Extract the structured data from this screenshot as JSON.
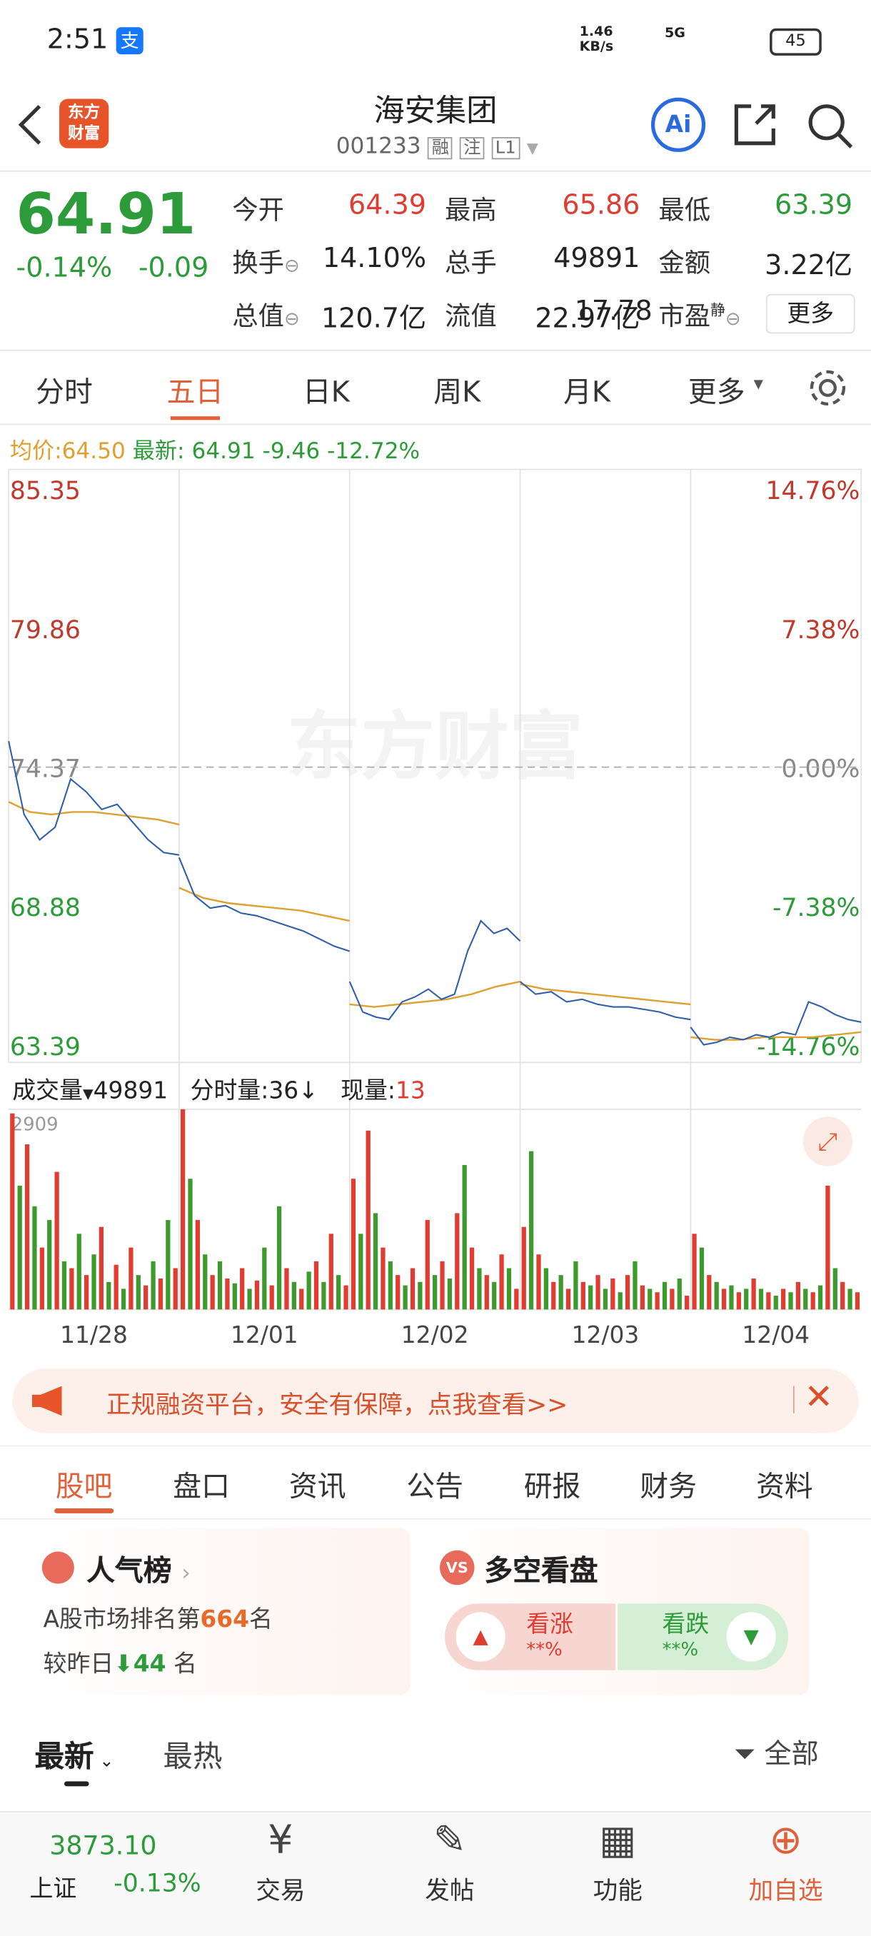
{
  "status": {
    "time": "2:51",
    "pay": "支",
    "speed": "1.46",
    "speed_unit": "KB/s",
    "net": "5G",
    "battery": "45"
  },
  "header": {
    "logo": [
      "东方",
      "财富"
    ],
    "title": "海安集团",
    "code": "001233",
    "tags": [
      "融",
      "注",
      "L1"
    ],
    "ai": "Ai"
  },
  "quote": {
    "price": "64.91",
    "change_pct": "-0.14%",
    "change": "-0.09",
    "stats": [
      {
        "label": "今开",
        "value": "64.39",
        "tone": "up"
      },
      {
        "label": "最高",
        "value": "65.86",
        "tone": "up"
      },
      {
        "label": "最低",
        "value": "63.39",
        "tone": "down"
      },
      {
        "label": "换手",
        "value": "14.10%",
        "tone": "flat"
      },
      {
        "label": "总手",
        "value": "49891",
        "tone": "flat"
      },
      {
        "label": "金额",
        "value": "3.22亿",
        "tone": "flat"
      },
      {
        "label": "总值",
        "value": "120.7亿",
        "tone": "flat"
      },
      {
        "label": "流值",
        "value": "22.97亿",
        "tone": "flat"
      },
      {
        "label": "市盈",
        "sup": "静",
        "value": "17.78",
        "tone": "flat"
      }
    ],
    "more": "更多"
  },
  "tabs": {
    "items": [
      "分时",
      "五日",
      "日K",
      "周K",
      "月K",
      "更多"
    ],
    "active": 1
  },
  "info": {
    "avg_label": "均价:",
    "avg": "64.50",
    "latest_label": "最新:",
    "latest": "64.91",
    "chg": "-9.46",
    "pct": "-12.72%"
  },
  "chart": {
    "type": "line",
    "watermark": "东方财富",
    "ylim": [
      63.39,
      85.35
    ],
    "yticks": [
      {
        "value": 85.35,
        "label": "85.35",
        "right": "14.76%",
        "tone": "up"
      },
      {
        "value": 79.86,
        "label": "79.86",
        "right": "7.38%",
        "tone": "up"
      },
      {
        "value": 74.37,
        "label": "74.37",
        "right": "0.00%",
        "tone": "flat"
      },
      {
        "value": 68.88,
        "label": "68.88",
        "right": "-7.38%",
        "tone": "down"
      },
      {
        "value": 63.39,
        "label": "63.39",
        "right": "-14.76%",
        "tone": "down"
      }
    ],
    "price_color": "#2f5fa8",
    "avg_color": "#e0a030",
    "days": [
      {
        "date": "11/28",
        "price": [
          75.4,
          72.5,
          71.5,
          72.0,
          73.9,
          73.4,
          72.7,
          72.9,
          72.2,
          71.5,
          71.0,
          70.9
        ],
        "avg": [
          73.0,
          72.6,
          72.5,
          72.6,
          72.6,
          72.5,
          72.4,
          72.3,
          72.1
        ]
      },
      {
        "date": "12/01",
        "price": [
          70.8,
          69.3,
          68.8,
          68.9,
          68.6,
          68.5,
          68.3,
          68.1,
          67.9,
          67.6,
          67.3,
          67.1
        ],
        "avg": [
          69.6,
          69.2,
          69.0,
          68.9,
          68.8,
          68.7,
          68.5,
          68.3
        ]
      },
      {
        "date": "12/02",
        "price": [
          65.9,
          64.7,
          64.5,
          64.4,
          65.1,
          65.3,
          65.6,
          65.2,
          65.4,
          67.1,
          68.3,
          67.8,
          68.0,
          67.5
        ],
        "avg": [
          65.0,
          64.9,
          65.0,
          65.1,
          65.2,
          65.4,
          65.7,
          65.9
        ]
      },
      {
        "date": "12/03",
        "price": [
          65.9,
          65.4,
          65.5,
          65.1,
          65.2,
          65.0,
          64.9,
          64.9,
          64.8,
          64.7,
          64.5,
          64.4
        ],
        "avg": [
          65.8,
          65.6,
          65.5,
          65.4,
          65.3,
          65.2,
          65.1,
          65.0
        ]
      },
      {
        "date": "12/04",
        "price": [
          64.1,
          63.4,
          63.5,
          63.7,
          63.6,
          63.8,
          63.7,
          63.9,
          63.8,
          65.1,
          64.9,
          64.6,
          64.4,
          64.3
        ],
        "avg": [
          63.7,
          63.6,
          63.6,
          63.7,
          63.7,
          63.7,
          63.8,
          63.9
        ]
      }
    ]
  },
  "volume": {
    "label": "成交量",
    "total": "49891",
    "per": "分时量:36",
    "now_label": "现量:",
    "now": "13",
    "max": {
      "value": 2909,
      "label": "2909"
    },
    "ylim": [
      0,
      2909
    ],
    "colors": [
      "#e03c31",
      "#3c9b2c"
    ],
    "days": [
      [
        2850,
        1800,
        2400,
        1500,
        900,
        1300,
        2000,
        700,
        600,
        1100,
        500,
        800,
        1200,
        400,
        650,
        300,
        900,
        500,
        350,
        700,
        450,
        1300,
        600
      ],
      [
        2909,
        1900,
        1300,
        800,
        500,
        700,
        450,
        380,
        600,
        300,
        420,
        900,
        350,
        1500,
        600,
        400,
        300,
        550,
        700,
        400,
        1100,
        500,
        350
      ],
      [
        1900,
        1100,
        2600,
        1400,
        900,
        700,
        500,
        350,
        600,
        400,
        1300,
        500,
        700,
        450,
        1400,
        2100,
        900,
        600,
        500,
        400,
        800,
        600,
        300
      ],
      [
        1200,
        2300,
        800,
        600,
        400,
        500,
        300,
        700,
        400,
        350,
        500,
        300,
        450,
        250,
        500,
        700,
        350,
        300,
        250,
        400,
        300,
        450,
        200
      ],
      [
        1100,
        900,
        500,
        400,
        300,
        350,
        250,
        300,
        450,
        300,
        250,
        200,
        300,
        250,
        400,
        300,
        250,
        350,
        1800,
        600,
        400,
        300,
        250
      ]
    ]
  },
  "banner": {
    "text": "正规融资平台，安全有保障，点我查看>>"
  },
  "nav": {
    "items": [
      "股吧",
      "盘口",
      "资讯",
      "公告",
      "研报",
      "财务",
      "资料"
    ],
    "active": 0
  },
  "cards": {
    "rank": {
      "title": "人气榜",
      "line1_pre": "A股市场排名第",
      "rank": "664",
      "line1_post": "名",
      "line2_pre": "较昨日",
      "delta": "44",
      "line2_post": "名"
    },
    "vs": {
      "title": "多空看盘",
      "badge": "VS",
      "up": "看涨",
      "up_pct": "**%",
      "down": "看跌",
      "down_pct": "**%"
    }
  },
  "feed": {
    "latest": "最新",
    "hot": "最热",
    "all": "全部"
  },
  "bottom": {
    "index": "3873.10",
    "name": "上证",
    "pct": "-0.13%",
    "items": [
      "交易",
      "发帖",
      "功能",
      "加自选"
    ]
  }
}
